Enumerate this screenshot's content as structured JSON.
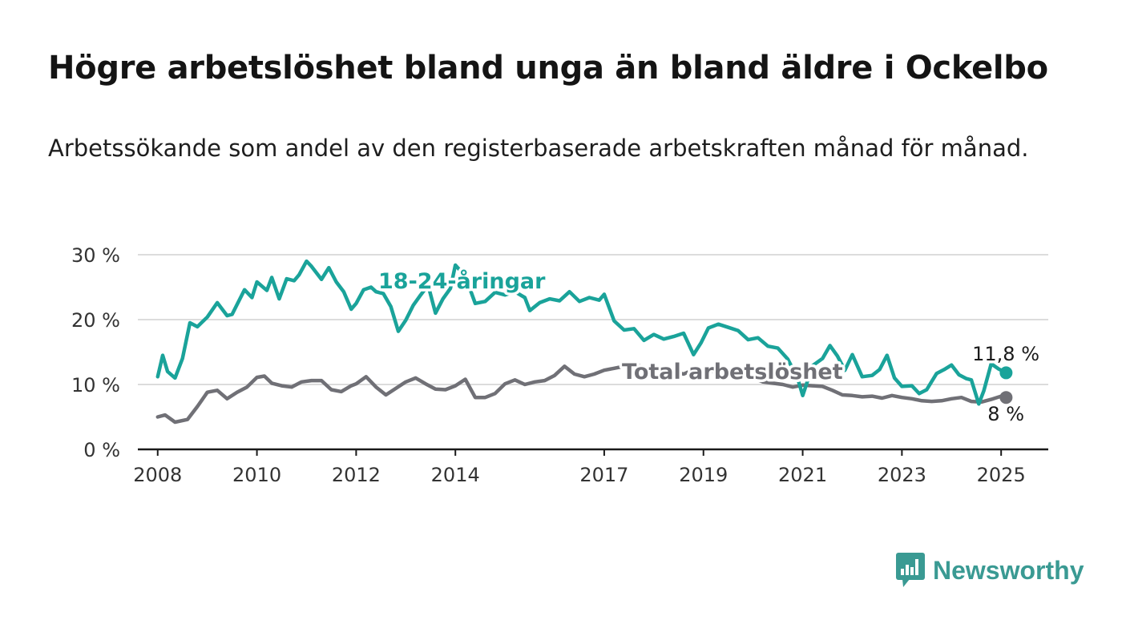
{
  "header": {
    "title": "Högre arbetslöshet bland unga än bland äldre i Ockelbo",
    "subtitle": "Arbetssökande som andel av den registerbaserade arbetskraften månad för månad."
  },
  "brand": {
    "name": "Newsworthy",
    "color": "#3a9a93"
  },
  "chart_data": {
    "type": "line",
    "title": "Högre arbetslöshet bland unga än bland äldre i Ockelbo",
    "xlabel": "",
    "ylabel": "",
    "xlim": [
      2007.6,
      2025.95
    ],
    "ylim": [
      0,
      30
    ],
    "grid": true,
    "y_ticks": [
      {
        "value": 0,
        "label": "0 %"
      },
      {
        "value": 10,
        "label": "10 %"
      },
      {
        "value": 20,
        "label": "20 %"
      },
      {
        "value": 30,
        "label": "30 %"
      }
    ],
    "x_ticks": [
      {
        "value": 2008,
        "label": "2008"
      },
      {
        "value": 2010,
        "label": "2010"
      },
      {
        "value": 2012,
        "label": "2012"
      },
      {
        "value": 2014,
        "label": "2014"
      },
      {
        "value": 2017,
        "label": "2017"
      },
      {
        "value": 2019,
        "label": "2019"
      },
      {
        "value": 2021,
        "label": "2021"
      },
      {
        "value": 2023,
        "label": "2023"
      },
      {
        "value": 2025,
        "label": "2025"
      }
    ],
    "series": [
      {
        "name": "18-24-åringar",
        "color": "#1aa39a",
        "end_label": "11,8 %",
        "x": [
          2008.0,
          2008.1,
          2008.2,
          2008.35,
          2008.5,
          2008.65,
          2008.8,
          2009.0,
          2009.2,
          2009.4,
          2009.5,
          2009.75,
          2009.9,
          2010.0,
          2010.2,
          2010.3,
          2010.45,
          2010.6,
          2010.75,
          2010.85,
          2011.0,
          2011.1,
          2011.3,
          2011.45,
          2011.6,
          2011.75,
          2011.9,
          2012.0,
          2012.15,
          2012.3,
          2012.4,
          2012.55,
          2012.7,
          2012.85,
          2013.0,
          2013.15,
          2013.3,
          2013.45,
          2013.6,
          2013.75,
          2013.9,
          2014.0,
          2014.2,
          2014.4,
          2014.6,
          2014.8,
          2015.0,
          2015.2,
          2015.4,
          2015.5,
          2015.7,
          2015.9,
          2016.1,
          2016.3,
          2016.5,
          2016.7,
          2016.9,
          2017.0,
          2017.2,
          2017.4,
          2017.6,
          2017.8,
          2018.0,
          2018.2,
          2018.4,
          2018.6,
          2018.8,
          2018.95,
          2019.1,
          2019.3,
          2019.5,
          2019.7,
          2019.9,
          2020.1,
          2020.3,
          2020.5,
          2020.7,
          2020.9,
          2021.0,
          2021.2,
          2021.4,
          2021.55,
          2021.7,
          2021.85,
          2022.0,
          2022.2,
          2022.4,
          2022.55,
          2022.7,
          2022.85,
          2023.0,
          2023.2,
          2023.35,
          2023.5,
          2023.7,
          2023.85,
          2024.0,
          2024.15,
          2024.3,
          2024.4,
          2024.55,
          2024.65,
          2024.8,
          2024.95,
          2025.1
        ],
        "y": [
          11.2,
          14.5,
          12.0,
          11.0,
          14.0,
          19.5,
          18.9,
          20.4,
          22.6,
          20.6,
          20.8,
          24.6,
          23.4,
          25.8,
          24.5,
          26.5,
          23.2,
          26.3,
          26.0,
          26.9,
          29.0,
          28.2,
          26.2,
          28.0,
          25.8,
          24.3,
          21.6,
          22.5,
          24.6,
          25.0,
          24.3,
          24.0,
          22.0,
          18.2,
          19.9,
          22.2,
          23.8,
          25.3,
          21.0,
          23.2,
          24.8,
          28.4,
          26.7,
          22.5,
          22.8,
          24.2,
          23.8,
          24.3,
          23.4,
          21.4,
          22.6,
          23.2,
          22.9,
          24.3,
          22.8,
          23.4,
          23.0,
          23.9,
          19.8,
          18.4,
          18.6,
          16.8,
          17.7,
          17.0,
          17.4,
          17.9,
          14.6,
          16.4,
          18.7,
          19.3,
          18.8,
          18.3,
          16.9,
          17.2,
          15.9,
          15.6,
          13.9,
          10.9,
          8.3,
          12.9,
          14.0,
          16.0,
          14.4,
          12.2,
          14.6,
          11.2,
          11.4,
          12.3,
          14.5,
          11.0,
          9.7,
          9.8,
          8.6,
          9.2,
          11.7,
          12.3,
          13.0,
          11.5,
          10.9,
          10.7,
          7.0,
          9.0,
          13.2,
          12.4,
          11.8
        ]
      },
      {
        "name": "Total arbetslöshet",
        "color": "#707076",
        "end_label": "8 %",
        "x": [
          2008.0,
          2008.15,
          2008.35,
          2008.6,
          2008.8,
          2009.0,
          2009.2,
          2009.4,
          2009.6,
          2009.8,
          2010.0,
          2010.15,
          2010.3,
          2010.5,
          2010.7,
          2010.9,
          2011.1,
          2011.3,
          2011.5,
          2011.7,
          2011.9,
          2012.0,
          2012.2,
          2012.4,
          2012.6,
          2012.8,
          2013.0,
          2013.2,
          2013.4,
          2013.6,
          2013.8,
          2014.0,
          2014.2,
          2014.4,
          2014.6,
          2014.8,
          2015.0,
          2015.2,
          2015.4,
          2015.6,
          2015.8,
          2016.0,
          2016.2,
          2016.4,
          2016.6,
          2016.8,
          2017.0,
          2017.2,
          2017.4,
          2017.6,
          2017.8,
          2018.0,
          2018.2,
          2018.4,
          2018.6,
          2018.8,
          2019.0,
          2019.2,
          2019.4,
          2019.6,
          2019.8,
          2020.0,
          2020.2,
          2020.4,
          2020.6,
          2020.8,
          2021.0,
          2021.2,
          2021.4,
          2021.6,
          2021.8,
          2022.0,
          2022.2,
          2022.4,
          2022.6,
          2022.8,
          2023.0,
          2023.2,
          2023.4,
          2023.6,
          2023.8,
          2024.0,
          2024.2,
          2024.4,
          2024.6,
          2024.8,
          2025.0,
          2025.1
        ],
        "y": [
          5.0,
          5.3,
          4.2,
          4.6,
          6.6,
          8.8,
          9.1,
          7.8,
          8.8,
          9.6,
          11.1,
          11.3,
          10.2,
          9.8,
          9.6,
          10.4,
          10.6,
          10.6,
          9.2,
          8.9,
          9.8,
          10.1,
          11.2,
          9.6,
          8.4,
          9.4,
          10.4,
          11.0,
          10.1,
          9.3,
          9.2,
          9.8,
          10.8,
          8.0,
          8.0,
          8.6,
          10.1,
          10.7,
          10.0,
          10.4,
          10.6,
          11.4,
          12.8,
          11.6,
          11.2,
          11.6,
          12.2,
          12.5,
          12.8,
          13.2,
          12.6,
          12.3,
          12.8,
          12.0,
          11.6,
          12.3,
          12.4,
          12.0,
          11.8,
          11.4,
          11.2,
          11.0,
          10.4,
          10.2,
          10.0,
          9.6,
          9.9,
          9.8,
          9.7,
          9.1,
          8.4,
          8.3,
          8.1,
          8.2,
          7.9,
          8.3,
          8.0,
          7.8,
          7.5,
          7.4,
          7.5,
          7.8,
          8.0,
          7.4,
          7.3,
          7.7,
          8.2,
          8.0
        ]
      }
    ]
  }
}
